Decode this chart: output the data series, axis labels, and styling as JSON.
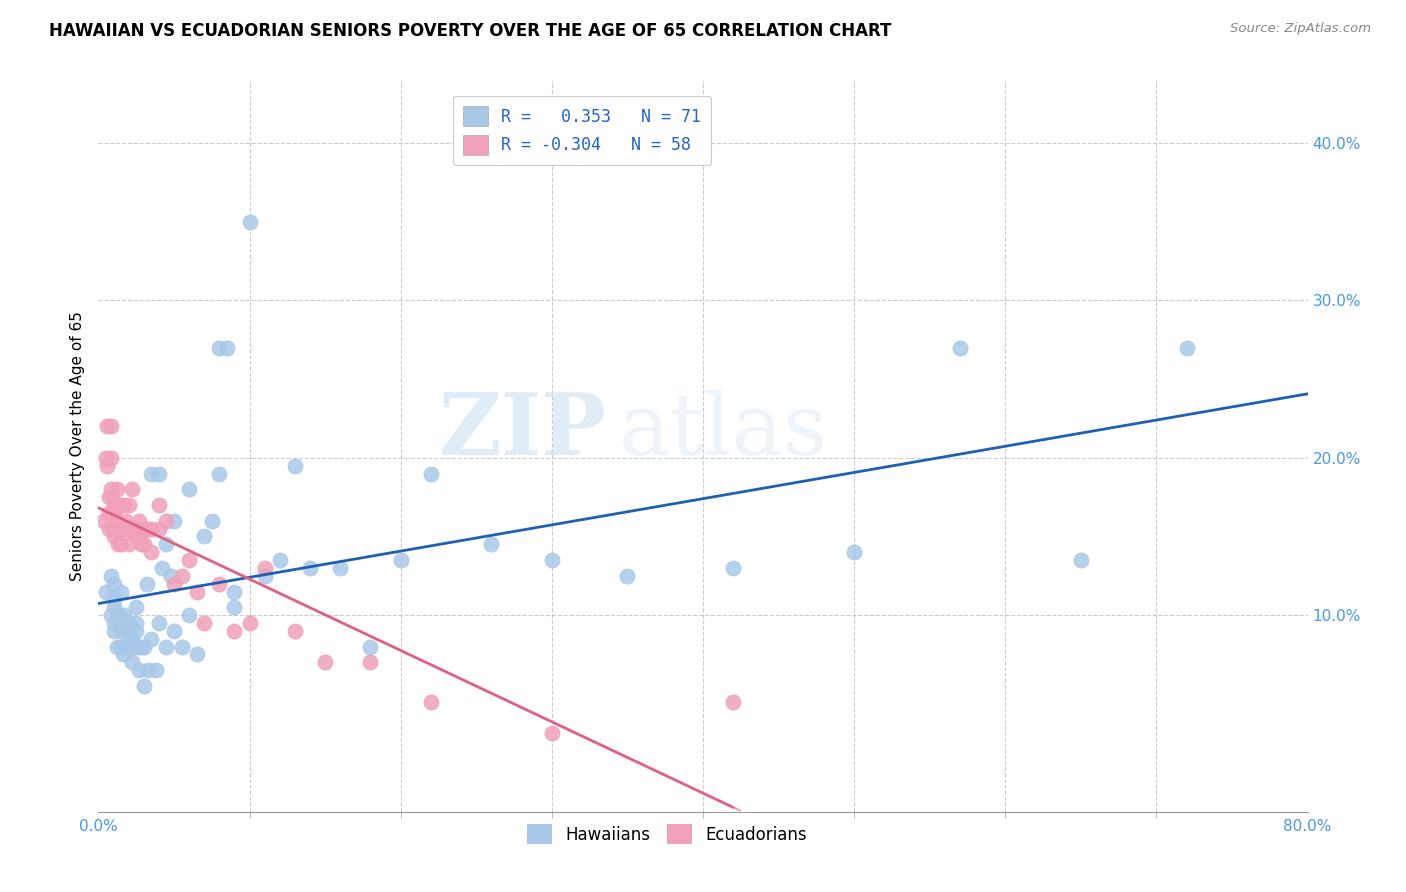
{
  "title": "HAWAIIAN VS ECUADORIAN SENIORS POVERTY OVER THE AGE OF 65 CORRELATION CHART",
  "source": "Source: ZipAtlas.com",
  "ylabel": "Seniors Poverty Over the Age of 65",
  "ylabel_ticks": [
    0.1,
    0.2,
    0.3,
    0.4
  ],
  "ylabel_ticklabels": [
    "10.0%",
    "20.0%",
    "30.0%",
    "40.0%"
  ],
  "xlim": [
    0.0,
    0.8
  ],
  "ylim": [
    -0.025,
    0.44
  ],
  "legend_label1": "R =   0.353   N = 71",
  "legend_label2": "R = -0.304   N = 58",
  "legend_xlabel": [
    "Hawaiians",
    "Ecuadorians"
  ],
  "hawaiian_color": "#a8c8e8",
  "ecuadorian_color": "#f0a0b8",
  "trend_hawaiian_color": "#2060b0",
  "trend_ecuadorian_color": "#e06080",
  "watermark_zip": "ZIP",
  "watermark_atlas": "atlas",
  "hawaiian_x": [
    0.005,
    0.008,
    0.008,
    0.01,
    0.01,
    0.01,
    0.01,
    0.01,
    0.012,
    0.013,
    0.015,
    0.015,
    0.015,
    0.016,
    0.017,
    0.018,
    0.02,
    0.02,
    0.02,
    0.02,
    0.022,
    0.022,
    0.025,
    0.025,
    0.025,
    0.025,
    0.027,
    0.028,
    0.03,
    0.03,
    0.032,
    0.033,
    0.035,
    0.035,
    0.038,
    0.04,
    0.04,
    0.042,
    0.045,
    0.045,
    0.048,
    0.05,
    0.05,
    0.055,
    0.06,
    0.06,
    0.065,
    0.07,
    0.075,
    0.08,
    0.08,
    0.085,
    0.09,
    0.09,
    0.1,
    0.11,
    0.12,
    0.13,
    0.14,
    0.16,
    0.18,
    0.2,
    0.22,
    0.26,
    0.3,
    0.35,
    0.42,
    0.5,
    0.57,
    0.65,
    0.72
  ],
  "hawaiian_y": [
    0.115,
    0.125,
    0.1,
    0.09,
    0.095,
    0.105,
    0.12,
    0.11,
    0.08,
    0.1,
    0.09,
    0.115,
    0.08,
    0.075,
    0.1,
    0.09,
    0.08,
    0.085,
    0.095,
    0.08,
    0.085,
    0.07,
    0.09,
    0.08,
    0.095,
    0.105,
    0.065,
    0.08,
    0.055,
    0.08,
    0.12,
    0.065,
    0.085,
    0.19,
    0.065,
    0.095,
    0.19,
    0.13,
    0.145,
    0.08,
    0.125,
    0.09,
    0.16,
    0.08,
    0.18,
    0.1,
    0.075,
    0.15,
    0.16,
    0.27,
    0.19,
    0.27,
    0.105,
    0.115,
    0.35,
    0.125,
    0.135,
    0.195,
    0.13,
    0.13,
    0.08,
    0.135,
    0.19,
    0.145,
    0.135,
    0.125,
    0.13,
    0.14,
    0.27,
    0.135,
    0.27
  ],
  "ecuadorian_x": [
    0.004,
    0.005,
    0.006,
    0.006,
    0.007,
    0.007,
    0.007,
    0.008,
    0.008,
    0.008,
    0.009,
    0.009,
    0.01,
    0.01,
    0.01,
    0.01,
    0.012,
    0.012,
    0.013,
    0.013,
    0.015,
    0.015,
    0.015,
    0.017,
    0.017,
    0.018,
    0.02,
    0.02,
    0.02,
    0.022,
    0.023,
    0.025,
    0.025,
    0.027,
    0.028,
    0.03,
    0.03,
    0.032,
    0.035,
    0.035,
    0.04,
    0.04,
    0.045,
    0.05,
    0.055,
    0.06,
    0.065,
    0.07,
    0.08,
    0.09,
    0.1,
    0.11,
    0.13,
    0.15,
    0.18,
    0.22,
    0.3,
    0.42
  ],
  "ecuadorian_y": [
    0.16,
    0.2,
    0.22,
    0.195,
    0.175,
    0.165,
    0.155,
    0.22,
    0.2,
    0.18,
    0.175,
    0.165,
    0.17,
    0.165,
    0.155,
    0.15,
    0.18,
    0.16,
    0.155,
    0.145,
    0.17,
    0.155,
    0.145,
    0.17,
    0.155,
    0.16,
    0.17,
    0.155,
    0.145,
    0.18,
    0.155,
    0.15,
    0.155,
    0.16,
    0.145,
    0.155,
    0.145,
    0.155,
    0.155,
    0.14,
    0.17,
    0.155,
    0.16,
    0.12,
    0.125,
    0.135,
    0.115,
    0.095,
    0.12,
    0.09,
    0.095,
    0.13,
    0.09,
    0.07,
    0.07,
    0.045,
    0.025,
    0.045
  ]
}
